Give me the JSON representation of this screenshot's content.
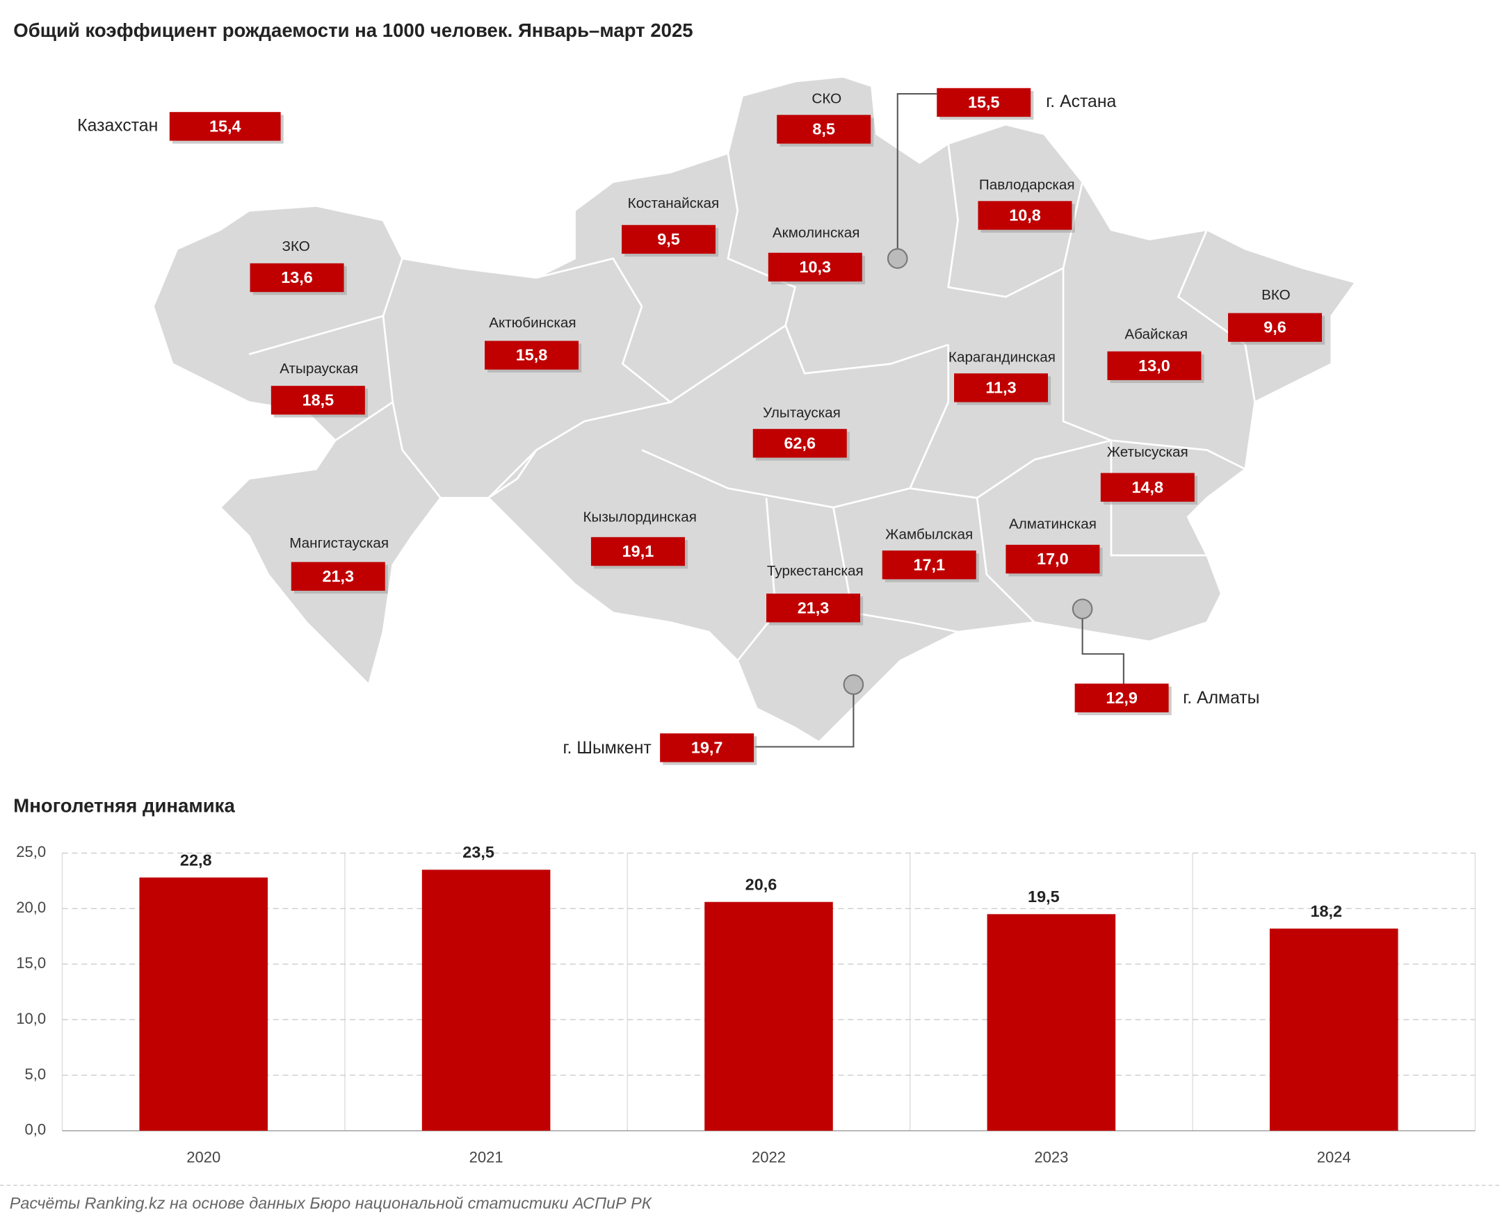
{
  "map": {
    "title": "Общий коэффициент рождаемости на 1000 человек. Январь–март 2025",
    "regions": [
      {
        "name": "Казахстан",
        "value": "15,4"
      },
      {
        "name": "СКО",
        "value": "8,5"
      },
      {
        "name": "г. Астана",
        "value": "15,5"
      },
      {
        "name": "Костанайская",
        "value": "9,5"
      },
      {
        "name": "Акмолинская",
        "value": "10,3"
      },
      {
        "name": "Павлодарская",
        "value": "10,8"
      },
      {
        "name": "ЗКО",
        "value": "13,6"
      },
      {
        "name": "Актюбинская",
        "value": "15,8"
      },
      {
        "name": "ВКО",
        "value": "9,6"
      },
      {
        "name": "Абайская",
        "value": "13,0"
      },
      {
        "name": "Атырауская",
        "value": "18,5"
      },
      {
        "name": "Карагандинская",
        "value": "11,3"
      },
      {
        "name": "Улытауская",
        "value": "62,6"
      },
      {
        "name": "Жетысуская",
        "value": "14,8"
      },
      {
        "name": "Кызылординская",
        "value": "19,1"
      },
      {
        "name": "Мангистауская",
        "value": "21,3"
      },
      {
        "name": "Жамбылская",
        "value": "17,1"
      },
      {
        "name": "Алматинская",
        "value": "17,0"
      },
      {
        "name": "Туркестанская",
        "value": "21,3"
      },
      {
        "name": "г. Алматы",
        "value": "12,9"
      },
      {
        "name": "г. Шымкент",
        "value": "19,7"
      }
    ]
  },
  "chart_data": {
    "type": "bar",
    "title": "Многолетняя динамика",
    "categories": [
      "2020",
      "2021",
      "2022",
      "2023",
      "2024"
    ],
    "values": [
      22.8,
      23.5,
      20.6,
      19.5,
      18.2
    ],
    "value_labels": [
      "22,8",
      "23,5",
      "20,6",
      "19,5",
      "18,2"
    ],
    "color": "#c00000",
    "ylim": [
      0,
      25
    ],
    "yticks": [
      {
        "value": 0,
        "label": "0,0"
      },
      {
        "value": 5,
        "label": "5,0"
      },
      {
        "value": 10,
        "label": "10,0"
      },
      {
        "value": 15,
        "label": "15,0"
      },
      {
        "value": 20,
        "label": "20,0"
      },
      {
        "value": 25,
        "label": "25,0"
      }
    ],
    "grid": true
  },
  "footer": "Расчёты Ranking.kz на основе данных Бюро национальной статистики АСПиР РК"
}
